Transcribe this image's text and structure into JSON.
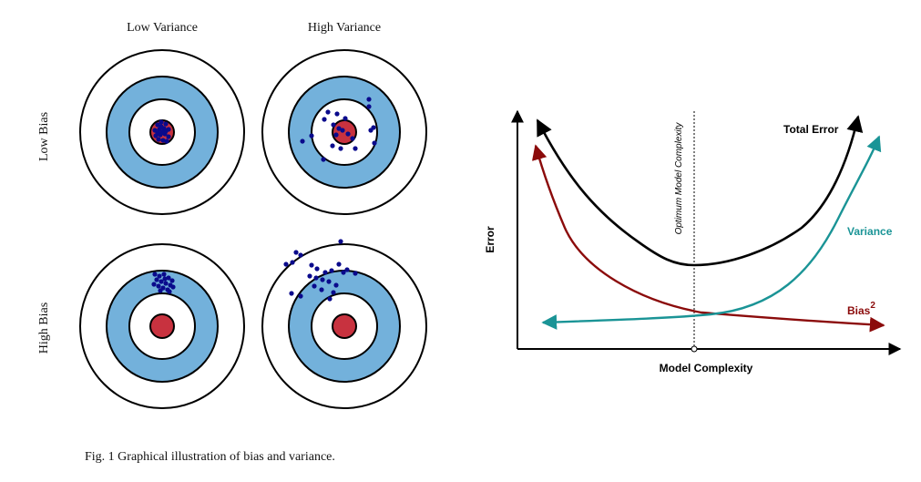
{
  "targets": {
    "col_labels": [
      "Low Variance",
      "High Variance"
    ],
    "row_labels": [
      "Low Bias",
      "High Bias"
    ],
    "panels": [
      {
        "name": "low-bias-low-variance"
      },
      {
        "name": "low-bias-high-variance"
      },
      {
        "name": "high-bias-low-variance"
      },
      {
        "name": "high-bias-high-variance"
      }
    ]
  },
  "tradeoff": {
    "curves": {
      "total_error": {
        "label": "Total Error",
        "color": "#000000"
      },
      "variance": {
        "label": "Variance",
        "color": "#1a9496"
      },
      "bias": {
        "label": "Bias",
        "superscript": "2",
        "color": "#8b0b0b"
      }
    },
    "xlabel": "Model Complexity",
    "ylabel": "Error",
    "optimum_label": "Optimum Model Complexity"
  },
  "colors": {
    "ring_blue": "#73b1db",
    "bullseye_red": "#c8323f",
    "dot": "#0a0a8c"
  },
  "caption": "Fig. 1 Graphical illustration of bias and variance."
}
